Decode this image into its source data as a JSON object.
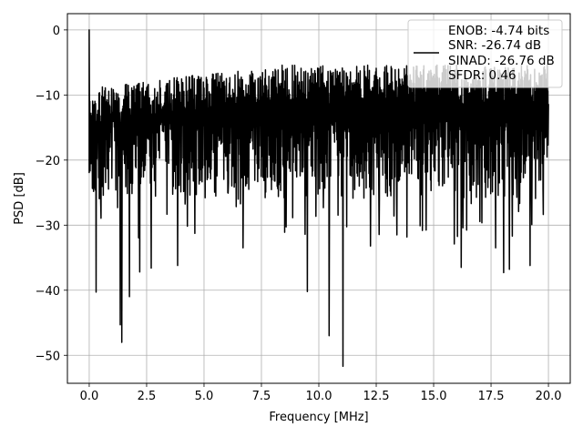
{
  "chart_data": {
    "type": "line",
    "title": "",
    "xlabel": "Frequency [MHz]",
    "ylabel": "PSD [dB]",
    "xlim": [
      -0.95,
      20.95
    ],
    "ylim": [
      -54.3,
      2.5
    ],
    "xticks": [
      0.0,
      2.5,
      5.0,
      7.5,
      10.0,
      12.5,
      15.0,
      17.5,
      20.0
    ],
    "xtick_labels": [
      "0.0",
      "2.5",
      "5.0",
      "7.5",
      "10.0",
      "12.5",
      "15.0",
      "17.5",
      "20.0"
    ],
    "yticks": [
      0,
      -10,
      -20,
      -30,
      -40,
      -50
    ],
    "ytick_labels": [
      "0",
      "−10",
      "−20",
      "−30",
      "−40",
      "−50"
    ],
    "grid": true,
    "legend_position": "top-right",
    "legend": [
      "ENOB: -4.74 bits",
      "SNR: -26.74 dB",
      "SINAD: -26.76 dB",
      "SFDR: 0.46"
    ],
    "line_color": "#000000",
    "x_range": [
      0.0,
      20.0
    ],
    "notable_points": [
      {
        "x": 0.0,
        "y": 0.0
      },
      {
        "x": 0.3,
        "y": -40.3
      },
      {
        "x": 1.35,
        "y": -45.3
      },
      {
        "x": 1.42,
        "y": -48.0
      },
      {
        "x": 1.75,
        "y": -41.0
      },
      {
        "x": 2.2,
        "y": -37.2
      },
      {
        "x": 2.7,
        "y": -36.6
      },
      {
        "x": 3.85,
        "y": -36.2
      },
      {
        "x": 6.7,
        "y": -33.5
      },
      {
        "x": 9.5,
        "y": -40.2
      },
      {
        "x": 10.45,
        "y": -47.0
      },
      {
        "x": 11.05,
        "y": -51.7
      },
      {
        "x": 12.25,
        "y": -33.2
      },
      {
        "x": 15.9,
        "y": -32.9
      },
      {
        "x": 16.2,
        "y": -36.5
      },
      {
        "x": 17.7,
        "y": -33.5
      },
      {
        "x": 18.05,
        "y": -37.3
      },
      {
        "x": 18.3,
        "y": -36.8
      },
      {
        "x": 19.2,
        "y": -36.2
      }
    ]
  }
}
